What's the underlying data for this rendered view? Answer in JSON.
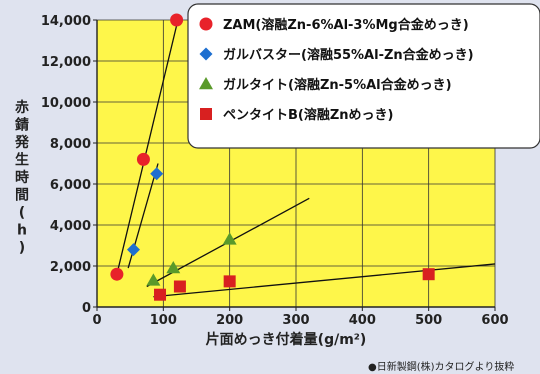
{
  "chart_data": {
    "type": "scatter",
    "xlabel": "片面めっき付着量(g/m²)",
    "ylabel": "赤錆発生時間(h)",
    "xlim": [
      0,
      600
    ],
    "ylim": [
      0,
      14000
    ],
    "xticks": [
      "0",
      "100",
      "200",
      "300",
      "400",
      "500",
      "600"
    ],
    "yticks": [
      "0",
      "2,000",
      "4,000",
      "6,000",
      "8,000",
      "10,000",
      "12,000",
      "14,000"
    ],
    "grid": true,
    "legend_position": "top-right",
    "series": [
      {
        "name": "ZAM(溶融Zn-6%Al-3%Mg合金めっき)",
        "marker": "circle",
        "color": "#e8222a",
        "points": [
          [
            30,
            1600
          ],
          [
            70,
            7200
          ],
          [
            120,
            14000
          ]
        ],
        "trend": [
          [
            30,
            1600
          ],
          [
            122,
            14000
          ]
        ]
      },
      {
        "name": "ガルバスター(溶融55%Al-Zn合金めっき)",
        "marker": "diamond",
        "color": "#1e6fd0",
        "points": [
          [
            55,
            2800
          ],
          [
            90,
            6500
          ]
        ],
        "trend": [
          [
            47,
            1900
          ],
          [
            92,
            7000
          ]
        ]
      },
      {
        "name": "ガルタイト(溶融Zn-5%Al合金めっき)",
        "marker": "triangle",
        "color": "#5a9a2a",
        "points": [
          [
            85,
            1300
          ],
          [
            115,
            1900
          ],
          [
            200,
            3300
          ]
        ],
        "trend": [
          [
            75,
            1000
          ],
          [
            320,
            5300
          ]
        ]
      },
      {
        "name": "ペンタイトB(溶融Znめっき)",
        "marker": "square",
        "color": "#d82020",
        "points": [
          [
            95,
            600
          ],
          [
            125,
            1000
          ],
          [
            200,
            1250
          ],
          [
            500,
            1600
          ]
        ],
        "trend": [
          [
            85,
            500
          ],
          [
            600,
            2100
          ]
        ]
      }
    ],
    "source_note": "●日新製鋼(株)カタログより抜粋"
  }
}
